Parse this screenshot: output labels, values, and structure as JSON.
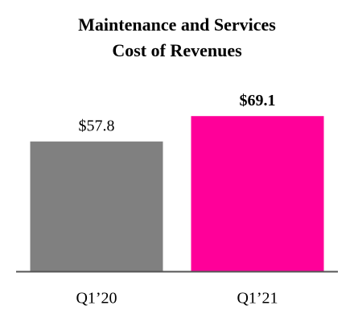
{
  "chart_data": {
    "type": "bar",
    "title": [
      "Maintenance and Services",
      "Cost of Revenues"
    ],
    "categories": [
      "Q1’20",
      "Q1’21"
    ],
    "values": [
      57.8,
      69.1
    ],
    "value_labels": [
      "$57.8",
      "$69.1"
    ],
    "colors": [
      "#808080",
      "#ff0099"
    ]
  }
}
